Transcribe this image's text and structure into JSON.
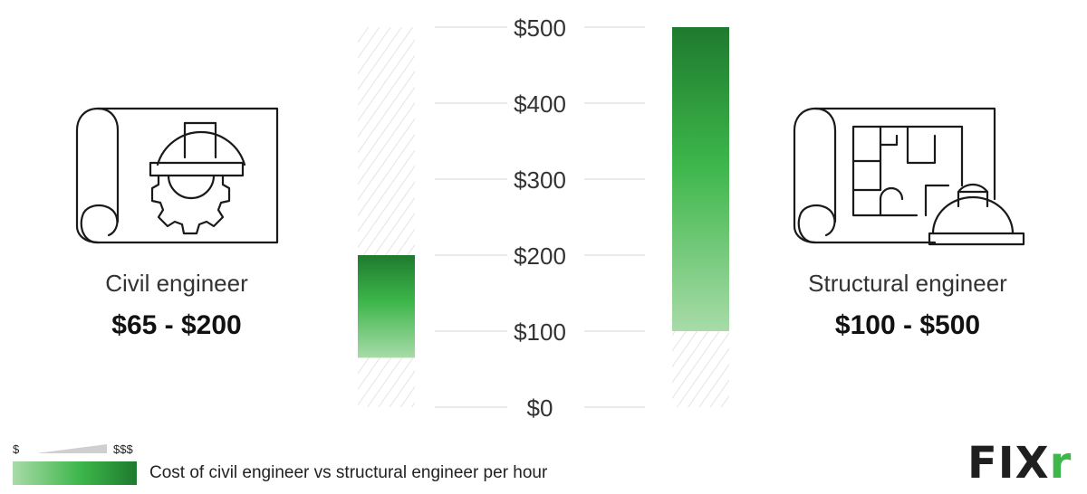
{
  "chart_data": {
    "type": "bar",
    "subtype": "floating-range",
    "categories": [
      "Civil engineer",
      "Structural engineer"
    ],
    "ranges": [
      [
        65,
        200
      ],
      [
        100,
        500
      ]
    ],
    "range_labels": [
      "$65 - $200",
      "$100 - $500"
    ],
    "ylim": [
      0,
      500
    ],
    "yticks": [
      0,
      100,
      200,
      300,
      400,
      500
    ],
    "ytick_labels": [
      "$0",
      "$100",
      "$200",
      "$300",
      "$400",
      "$500"
    ],
    "grid": true,
    "title": "",
    "xlabel": "",
    "ylabel": ""
  },
  "left": {
    "name": "Civil engineer",
    "range": "$65 - $200",
    "icon": "blueprint-hard-hat-gear-icon"
  },
  "right": {
    "name": "Structural engineer",
    "range": "$100 - $500",
    "icon": "blueprint-floor-plan-hard-hat-icon"
  },
  "legend": {
    "low": "$",
    "high": "$$$",
    "caption": "Cost of civil engineer vs structural engineer per hour"
  },
  "brand": {
    "logo_text": "FIXr",
    "logo_main": "FIX",
    "logo_accent": "r"
  },
  "colors": {
    "bar_light": "#a8dba8",
    "bar_mid": "#3db64a",
    "bar_dark": "#1e7a2e",
    "grid": "#e3e3e3",
    "hatch": "#d9d9d9",
    "icon_stroke": "#1a1a1a"
  }
}
